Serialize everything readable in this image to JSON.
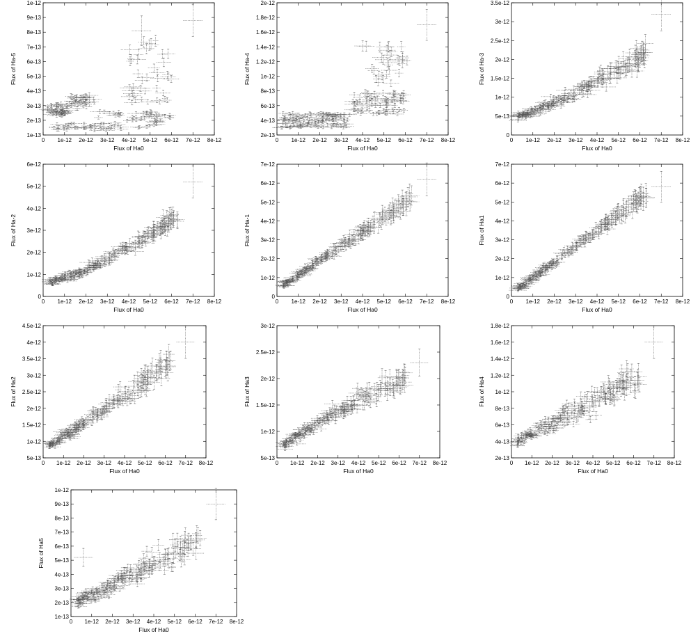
{
  "chart_data": [
    {
      "type": "scatter",
      "xlabel": "Flux of Ha0",
      "ylabel": "Flux of Ha-5",
      "xlim": [
        0,
        8e-12
      ],
      "ylim": [
        1e-13,
        1e-12
      ],
      "xticks": [
        "0",
        "1e-12",
        "2e-12",
        "3e-12",
        "4e-12",
        "5e-12",
        "6e-12",
        "7e-12",
        "8e-12"
      ],
      "yticks": [
        "1e-13",
        "2e-13",
        "3e-13",
        "4e-13",
        "5e-13",
        "6e-13",
        "7e-13",
        "8e-13",
        "9e-13",
        "1e-12"
      ],
      "clusters": [
        {
          "x": [
            2e-13,
            1.2e-12
          ],
          "y": [
            2.3e-13,
            3.1e-13
          ],
          "n": 45
        },
        {
          "x": [
            1.2e-12,
            2.4e-12
          ],
          "y": [
            2.8e-13,
            3.7e-13
          ],
          "n": 35
        },
        {
          "x": [
            4e-13,
            3e-12
          ],
          "y": [
            1.3e-13,
            1.8e-13
          ],
          "n": 30
        },
        {
          "x": [
            2.5e-12,
            6e-12
          ],
          "y": [
            1.4e-13,
            2.6e-13
          ],
          "n": 55
        },
        {
          "x": [
            4e-12,
            6e-12
          ],
          "y": [
            3e-13,
            7.5e-13
          ],
          "n": 40
        }
      ],
      "outliers": [
        {
          "x": 7e-12,
          "y": 8.8e-13
        },
        {
          "x": 4.6e-12,
          "y": 8.1e-13
        }
      ]
    },
    {
      "type": "scatter",
      "xlabel": "Flux of Ha0",
      "ylabel": "Flux of Ha-4",
      "xlim": [
        0,
        8e-12
      ],
      "ylim": [
        2e-13,
        2e-12
      ],
      "xticks": [
        "0",
        "1e-12",
        "2e-12",
        "3e-12",
        "4e-12",
        "5e-12",
        "6e-12",
        "7e-12",
        "8e-12"
      ],
      "yticks": [
        "2e-13",
        "4e-13",
        "6e-13",
        "8e-13",
        "1e-12",
        "1.2e-12",
        "1.4e-12",
        "1.6e-12",
        "1.8e-12",
        "2e-12"
      ],
      "clusters": [
        {
          "x": [
            2e-13,
            3.5e-12
          ],
          "y": [
            3e-13,
            5e-13
          ],
          "n": 110
        },
        {
          "x": [
            3.5e-12,
            6e-12
          ],
          "y": [
            4.8e-13,
            7.8e-13
          ],
          "n": 70
        },
        {
          "x": [
            4e-12,
            6.2e-12
          ],
          "y": [
            9e-13,
            1.45e-12
          ],
          "n": 30
        }
      ],
      "outliers": [
        {
          "x": 7e-12,
          "y": 1.7e-12
        }
      ]
    },
    {
      "type": "scatter",
      "xlabel": "Flux of Ha0",
      "ylabel": "Flux of Ha-3",
      "xlim": [
        0,
        8e-12
      ],
      "ylim": [
        0,
        3.5e-12
      ],
      "xticks": [
        "0",
        "1e-12",
        "2e-12",
        "3e-12",
        "4e-12",
        "5e-12",
        "6e-12",
        "7e-12",
        "8e-12"
      ],
      "yticks": [
        "0",
        "5e-13",
        "1e-12",
        "1.5e-12",
        "2e-12",
        "2.5e-12",
        "3e-12",
        "3.5e-12"
      ],
      "trend": {
        "x": [
          3e-13,
          6.3e-12
        ],
        "y0": 5e-13,
        "y1": 2.2e-12,
        "spread": 1.8e-13,
        "curve": 1.25,
        "n": 200
      },
      "outliers": [
        {
          "x": 7e-12,
          "y": 3.2e-12
        }
      ]
    },
    {
      "type": "scatter",
      "xlabel": "Flux of Ha0",
      "ylabel": "Flux of Ha-2",
      "xlim": [
        0,
        8e-12
      ],
      "ylim": [
        0,
        6e-12
      ],
      "xticks": [
        "0",
        "1e-12",
        "2e-12",
        "3e-12",
        "4e-12",
        "5e-12",
        "6e-12",
        "7e-12",
        "8e-12"
      ],
      "yticks": [
        "0",
        "1e-12",
        "2e-12",
        "3e-12",
        "4e-12",
        "5e-12",
        "6e-12"
      ],
      "trend": {
        "x": [
          3e-13,
          6.3e-12
        ],
        "y0": 6.5e-13,
        "y1": 3.7e-12,
        "spread": 2.5e-13,
        "curve": 1.35,
        "n": 200
      },
      "outliers": [
        {
          "x": 7e-12,
          "y": 5.2e-12
        }
      ]
    },
    {
      "type": "scatter",
      "xlabel": "Flux of Ha0",
      "ylabel": "Flux of Ha-1",
      "xlim": [
        0,
        8e-12
      ],
      "ylim": [
        0,
        7e-12
      ],
      "xticks": [
        "0",
        "1e-12",
        "2e-12",
        "3e-12",
        "4e-12",
        "5e-12",
        "6e-12",
        "7e-12",
        "8e-12"
      ],
      "yticks": [
        "0",
        "1e-12",
        "2e-12",
        "3e-12",
        "4e-12",
        "5e-12",
        "6e-12",
        "7e-12"
      ],
      "trend": {
        "x": [
          3e-13,
          6.3e-12
        ],
        "y0": 6e-13,
        "y1": 5.2e-12,
        "spread": 2.5e-13,
        "curve": 1.0,
        "n": 200
      },
      "outliers": [
        {
          "x": 7e-12,
          "y": 6.2e-12
        }
      ]
    },
    {
      "type": "scatter",
      "xlabel": "Flux of Ha0",
      "ylabel": "Flux of Ha1",
      "xlim": [
        0,
        8e-12
      ],
      "ylim": [
        0,
        7e-12
      ],
      "xticks": [
        "0",
        "1e-12",
        "2e-12",
        "3e-12",
        "4e-12",
        "5e-12",
        "6e-12",
        "7e-12",
        "8e-12"
      ],
      "yticks": [
        "0",
        "1e-12",
        "2e-12",
        "3e-12",
        "4e-12",
        "5e-12",
        "6e-12",
        "7e-12"
      ],
      "trend": {
        "x": [
          3e-13,
          6.3e-12
        ],
        "y0": 4e-13,
        "y1": 5.4e-12,
        "spread": 2.3e-13,
        "curve": 1.0,
        "n": 200
      },
      "outliers": [
        {
          "x": 7e-12,
          "y": 5.8e-12
        }
      ]
    },
    {
      "type": "scatter",
      "xlabel": "Flux of Ha0",
      "ylabel": "Flux of Ha2",
      "xlim": [
        0,
        8e-12
      ],
      "ylim": [
        5e-13,
        4.5e-12
      ],
      "xticks": [
        "0",
        "1e-12",
        "2e-12",
        "3e-12",
        "4e-12",
        "5e-12",
        "6e-12",
        "7e-12",
        "8e-12"
      ],
      "yticks": [
        "5e-13",
        "1e-12",
        "1.5e-12",
        "2e-12",
        "2.5e-12",
        "3e-12",
        "3.5e-12",
        "4e-12",
        "4.5e-12"
      ],
      "trend": {
        "x": [
          3e-13,
          6.3e-12
        ],
        "y0": 8.5e-13,
        "y1": 3.4e-12,
        "spread": 2.2e-13,
        "curve": 1.0,
        "n": 200
      },
      "outliers": [
        {
          "x": 7e-12,
          "y": 4e-12
        }
      ]
    },
    {
      "type": "scatter",
      "xlabel": "Flux of Ha0",
      "ylabel": "Flux of Ha3",
      "xlim": [
        0,
        8e-12
      ],
      "ylim": [
        5e-13,
        3e-12
      ],
      "xticks": [
        "0",
        "1e-12",
        "2e-12",
        "3e-12",
        "4e-12",
        "5e-12",
        "6e-12",
        "7e-12",
        "8e-12"
      ],
      "yticks": [
        "5e-13",
        "1e-12",
        "1.5e-12",
        "2e-12",
        "2.5e-12",
        "3e-12"
      ],
      "trend": {
        "x": [
          3e-13,
          6.3e-12
        ],
        "y0": 7e-13,
        "y1": 2e-12,
        "spread": 1.5e-13,
        "curve": 0.85,
        "n": 200
      },
      "outliers": [
        {
          "x": 7e-12,
          "y": 2.3e-12
        }
      ]
    },
    {
      "type": "scatter",
      "xlabel": "Flux of Ha0",
      "ylabel": "Flux of Ha4",
      "xlim": [
        0,
        8e-12
      ],
      "ylim": [
        2e-13,
        1.8e-12
      ],
      "xticks": [
        "0",
        "1e-12",
        "2e-12",
        "3e-12",
        "4e-12",
        "5e-12",
        "6e-12",
        "7e-12",
        "8e-12"
      ],
      "yticks": [
        "2e-13",
        "4e-13",
        "6e-13",
        "8e-13",
        "1e-12",
        "1.2e-12",
        "1.4e-12",
        "1.6e-12",
        "1.8e-12"
      ],
      "trend": {
        "x": [
          3e-13,
          6.3e-12
        ],
        "y0": 4.2e-13,
        "y1": 1.2e-12,
        "spread": 1.3e-13,
        "curve": 1.1,
        "n": 200
      },
      "outliers": [
        {
          "x": 7e-12,
          "y": 1.6e-12
        }
      ]
    },
    {
      "type": "scatter",
      "xlabel": "Flux of Ha0",
      "ylabel": "Flux of Ha5",
      "xlim": [
        0,
        8e-12
      ],
      "ylim": [
        1e-13,
        1e-12
      ],
      "xticks": [
        "0",
        "1e-12",
        "2e-12",
        "3e-12",
        "4e-12",
        "5e-12",
        "6e-12",
        "7e-12",
        "8e-12"
      ],
      "yticks": [
        "1e-13",
        "2e-13",
        "3e-13",
        "4e-13",
        "5e-13",
        "6e-13",
        "7e-13",
        "8e-13",
        "9e-13",
        "1e-12"
      ],
      "trend": {
        "x": [
          3e-13,
          6.3e-12
        ],
        "y0": 2e-13,
        "y1": 6.5e-13,
        "spread": 7e-14,
        "curve": 1.0,
        "n": 200
      },
      "outliers": [
        {
          "x": 7e-12,
          "y": 9e-13
        },
        {
          "x": 6e-13,
          "y": 5.2e-13
        }
      ]
    }
  ]
}
